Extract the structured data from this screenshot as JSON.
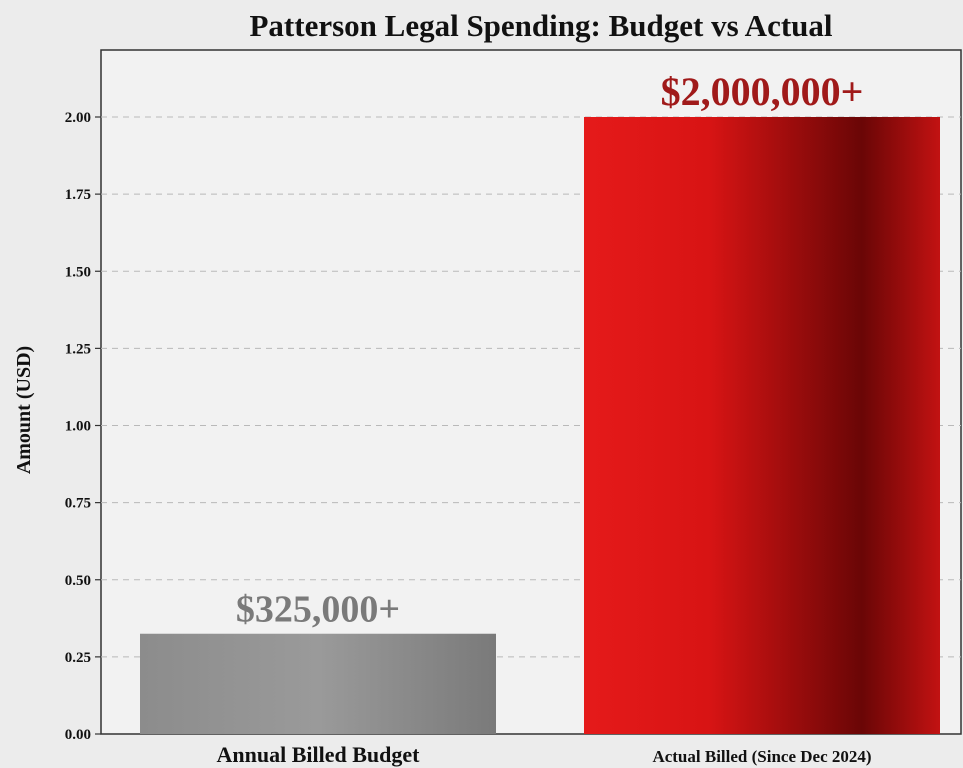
{
  "chart_data": {
    "type": "bar",
    "title": "Patterson Legal Spending: Budget vs Actual",
    "ylabel": "Amount (USD)",
    "xlabel": "",
    "categories": [
      "Annual Billed Budget",
      "Actual Billed (Since Dec 2024)"
    ],
    "values": [
      0.325,
      2.0
    ],
    "value_labels": [
      "$325,000+",
      "$2,000,000+"
    ],
    "ylim": [
      0,
      2.0
    ],
    "yticks": [
      "0.00",
      "0.25",
      "0.50",
      "0.75",
      "1.00",
      "1.25",
      "1.50",
      "1.75",
      "2.00"
    ],
    "grid": true,
    "colors": {
      "budget": "#8a8a8a",
      "actual": "#e01818",
      "budget_label": "#7a7a7a",
      "actual_label": "#a01a1a"
    }
  }
}
